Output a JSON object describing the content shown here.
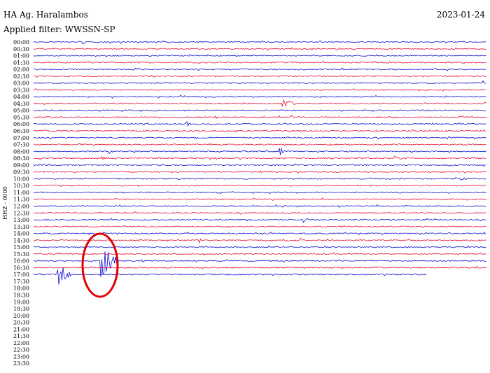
{
  "header": {
    "station": "HA Ag. Haralambos",
    "filter": "Applied filter: WWSSN-SP",
    "date": "2023-01-24"
  },
  "channel": "HHZ - 0000",
  "time_labels": [
    "00:00",
    "00:30",
    "01:00",
    "01:30",
    "02:00",
    "02:30",
    "03:00",
    "03:30",
    "04:00",
    "04:30",
    "05:00",
    "05:30",
    "06:00",
    "06:30",
    "07:00",
    "07:30",
    "08:00",
    "08:30",
    "09:00",
    "09:30",
    "10:00",
    "10:30",
    "11:00",
    "11:30",
    "12:00",
    "12:30",
    "13:00",
    "13:30",
    "14:00",
    "14:30",
    "15:00",
    "15:30",
    "16:00",
    "16:30",
    "17:00",
    "17:30",
    "18:00",
    "18:30",
    "19:00",
    "19:30",
    "20:00",
    "20:30",
    "21:00",
    "21:30",
    "22:00",
    "22:30",
    "23:00",
    "23:30"
  ]
}
